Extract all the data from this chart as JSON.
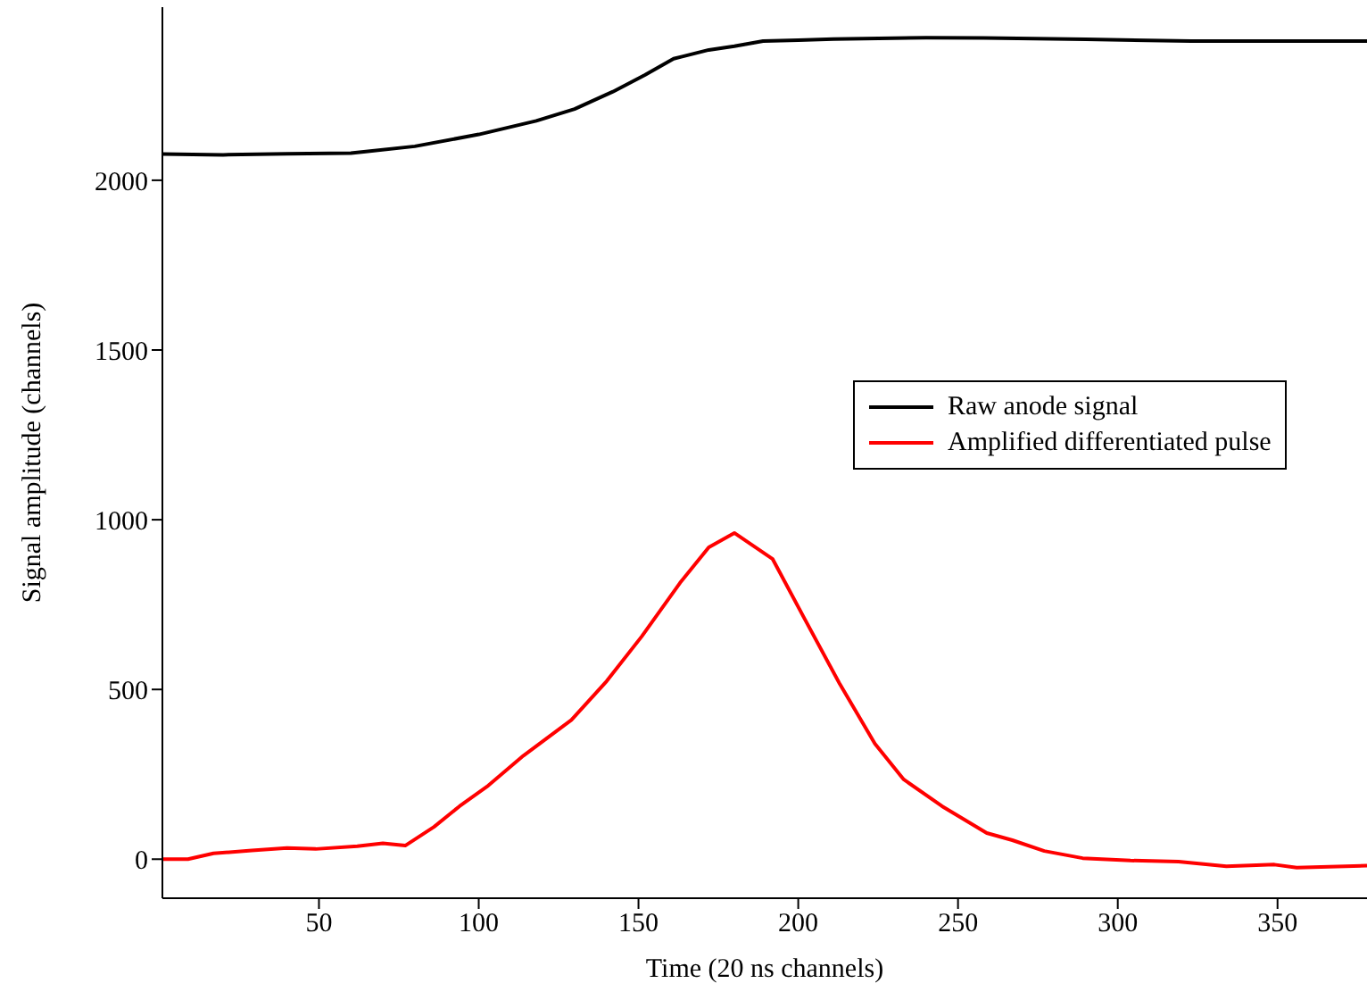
{
  "chart_data": {
    "type": "line",
    "xlabel": "Time (20 ns channels)",
    "ylabel": "Signal amplitude (channels)",
    "xlim": [
      1,
      378
    ],
    "ylim": [
      -115,
      2510
    ],
    "xticks": [
      50,
      100,
      150,
      200,
      250,
      300,
      350
    ],
    "yticks": [
      0,
      500,
      1000,
      1500,
      2000
    ],
    "legend": "right",
    "marker": "none",
    "line_style": "solid",
    "series": [
      {
        "name": "Raw anode signal",
        "color": "#000000",
        "x": [
          1,
          20,
          40,
          60,
          64,
          80,
          100,
          118,
          130,
          142,
          152,
          161,
          172,
          180,
          189,
          200,
          211,
          240,
          258,
          290,
          323,
          350,
          378
        ],
        "values": [
          2077,
          2075,
          2078,
          2080,
          2084,
          2100,
          2135,
          2175,
          2210,
          2261,
          2310,
          2358,
          2384,
          2395,
          2410,
          2413,
          2416,
          2420,
          2419,
          2415,
          2410,
          2410,
          2410
        ]
      },
      {
        "name": "Amplified differentiated pulse",
        "color": "#ff0000",
        "x": [
          1,
          9,
          17,
          29,
          40,
          49,
          62,
          70,
          77,
          86,
          94,
          103,
          114,
          129,
          140,
          151,
          163,
          172,
          180,
          192,
          202,
          213,
          224,
          233,
          245,
          259,
          267,
          277,
          289,
          304,
          319,
          334,
          349,
          356,
          378
        ],
        "values": [
          0,
          0,
          17,
          26,
          33,
          30,
          38,
          47,
          40,
          95,
          156,
          217,
          305,
          410,
          524,
          656,
          814,
          919,
          961,
          884,
          708,
          516,
          340,
          235,
          156,
          77,
          56,
          24,
          3,
          -4,
          -7,
          -21,
          -16,
          -25,
          -19
        ]
      }
    ]
  }
}
